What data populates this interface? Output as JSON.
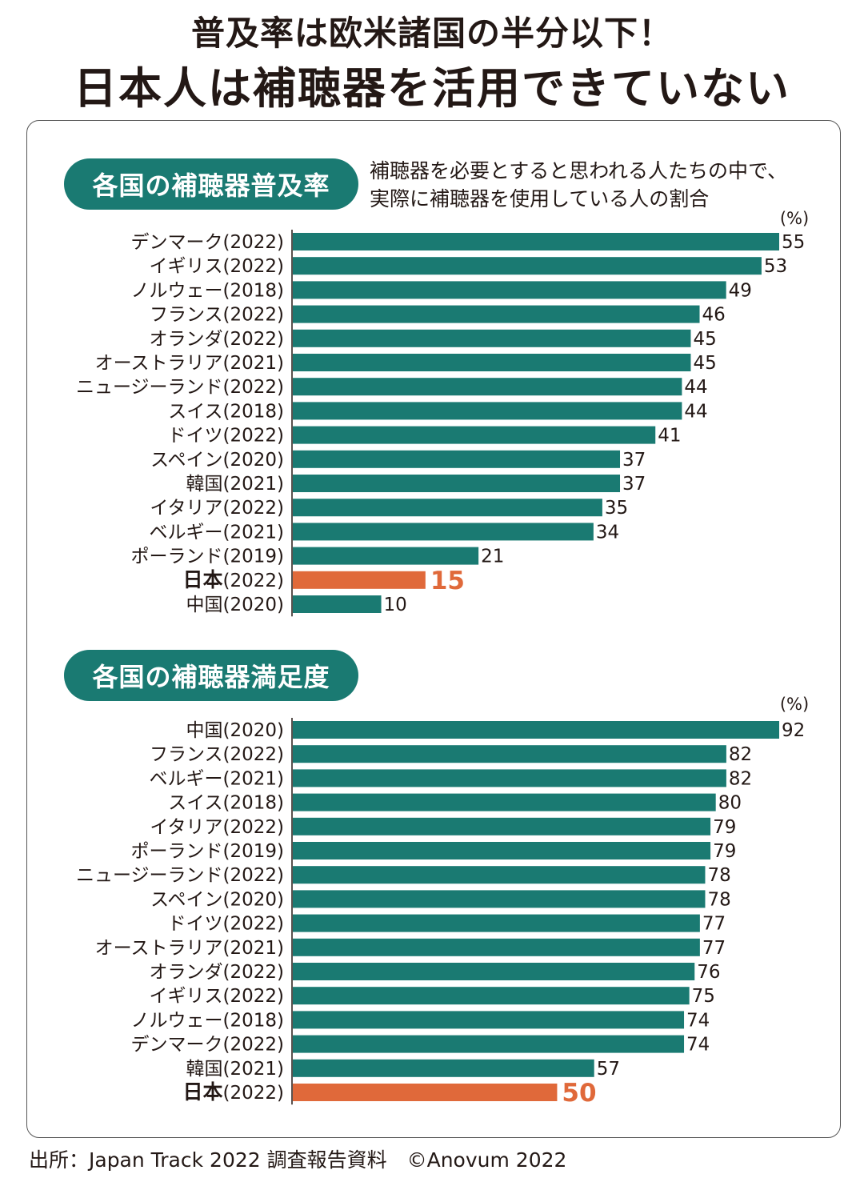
{
  "headline": {
    "line1": "普及率は欧米諸国の半分以下！",
    "line2": "日本人は補聴器を活用できていない"
  },
  "source": "出所：Japan Track 2022 調査報告資料　©Anovum 2022",
  "colors": {
    "bar": "#1a7a72",
    "highlight": "#e0693a"
  },
  "chart_data": [
    {
      "type": "bar",
      "orientation": "horizontal",
      "title": "各国の補聴器普及率",
      "subtitle": [
        "補聴器を必要とすると思われる人たちの中で、",
        "実際に補聴器を使用している人の割合"
      ],
      "unit": "(%)",
      "highlight": "日本(2022)",
      "categories": [
        "デンマーク(2022)",
        "イギリス(2022)",
        "ノルウェー(2018)",
        "フランス(2022)",
        "オランダ(2022)",
        "オーストラリア(2021)",
        "ニュージーランド(2022)",
        "スイス(2018)",
        "ドイツ(2022)",
        "スペイン(2020)",
        "韓国(2021)",
        "イタリア(2022)",
        "ベルギー(2021)",
        "ポーランド(2019)",
        "日本(2022)",
        "中国(2020)"
      ],
      "values": [
        55,
        53,
        49,
        46,
        45,
        45,
        44,
        44,
        41,
        37,
        37,
        35,
        34,
        21,
        15,
        10
      ],
      "xlim": [
        0,
        55
      ]
    },
    {
      "type": "bar",
      "orientation": "horizontal",
      "title": "各国の補聴器満足度",
      "unit": "(%)",
      "highlight": "日本(2022)",
      "categories": [
        "中国(2020)",
        "フランス(2022)",
        "ベルギー(2021)",
        "スイス(2018)",
        "イタリア(2022)",
        "ポーランド(2019)",
        "ニュージーランド(2022)",
        "スペイン(2020)",
        "ドイツ(2022)",
        "オーストラリア(2021)",
        "オランダ(2022)",
        "イギリス(2022)",
        "ノルウェー(2018)",
        "デンマーク(2022)",
        "韓国(2021)",
        "日本(2022)"
      ],
      "values": [
        92,
        82,
        82,
        80,
        79,
        79,
        78,
        78,
        77,
        77,
        76,
        75,
        74,
        74,
        57,
        50
      ],
      "xlim": [
        0,
        92
      ]
    }
  ]
}
